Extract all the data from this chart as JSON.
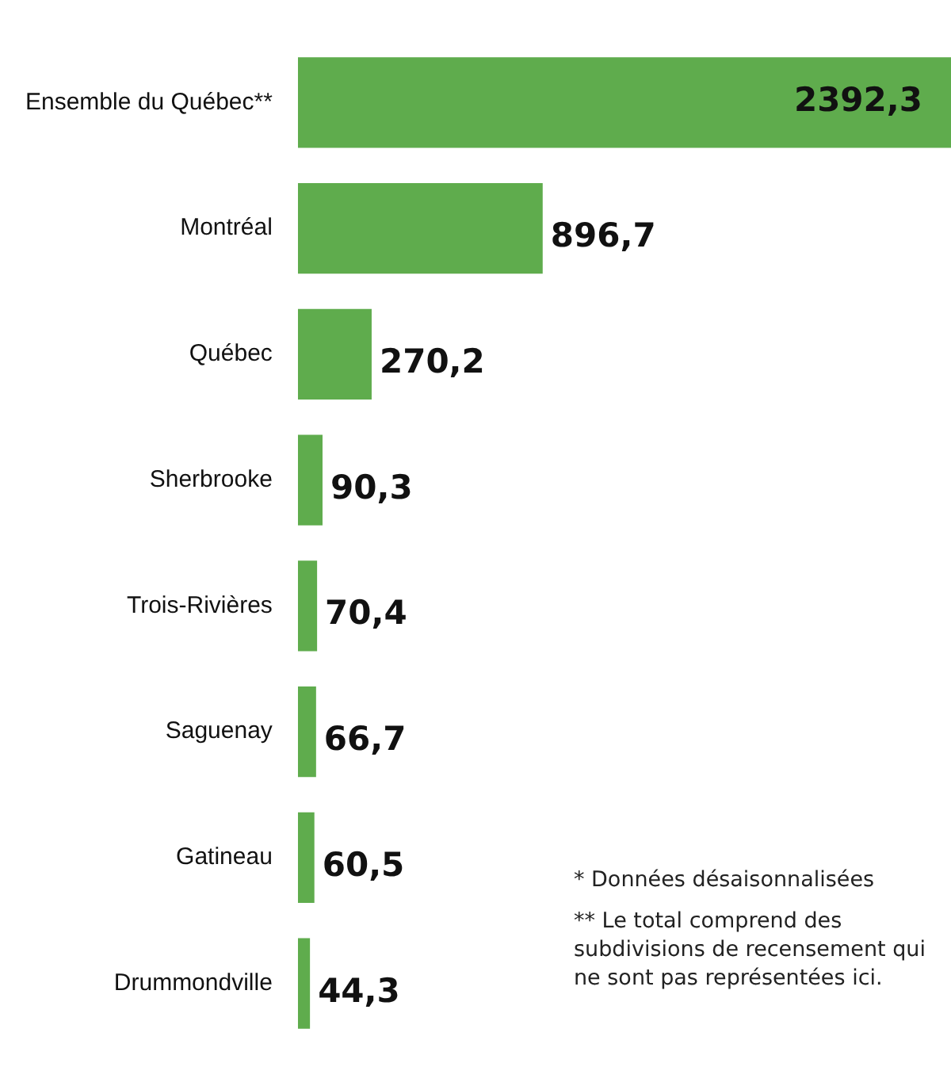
{
  "chart_data": {
    "type": "bar",
    "orientation": "horizontal",
    "categories": [
      "Ensemble du Québec**",
      "Montréal",
      "Québec",
      "Sherbrooke",
      "Trois-Rivières",
      "Saguenay",
      "Gatineau",
      "Drummondville"
    ],
    "values": [
      2392.3,
      896.7,
      270.2,
      90.3,
      70.4,
      66.7,
      60.5,
      44.3
    ],
    "value_labels": [
      "2392,3",
      "896,7",
      "270,2",
      "90,3",
      "70,4",
      "66,7",
      "60,5",
      "44,3"
    ],
    "color": "#5fac4d",
    "grid": false,
    "legend": false,
    "annotations": [
      "* Données désaisonnalisées",
      "** Le total comprend des subdivisions de recensement qui ne sont pas représentées ici."
    ]
  }
}
